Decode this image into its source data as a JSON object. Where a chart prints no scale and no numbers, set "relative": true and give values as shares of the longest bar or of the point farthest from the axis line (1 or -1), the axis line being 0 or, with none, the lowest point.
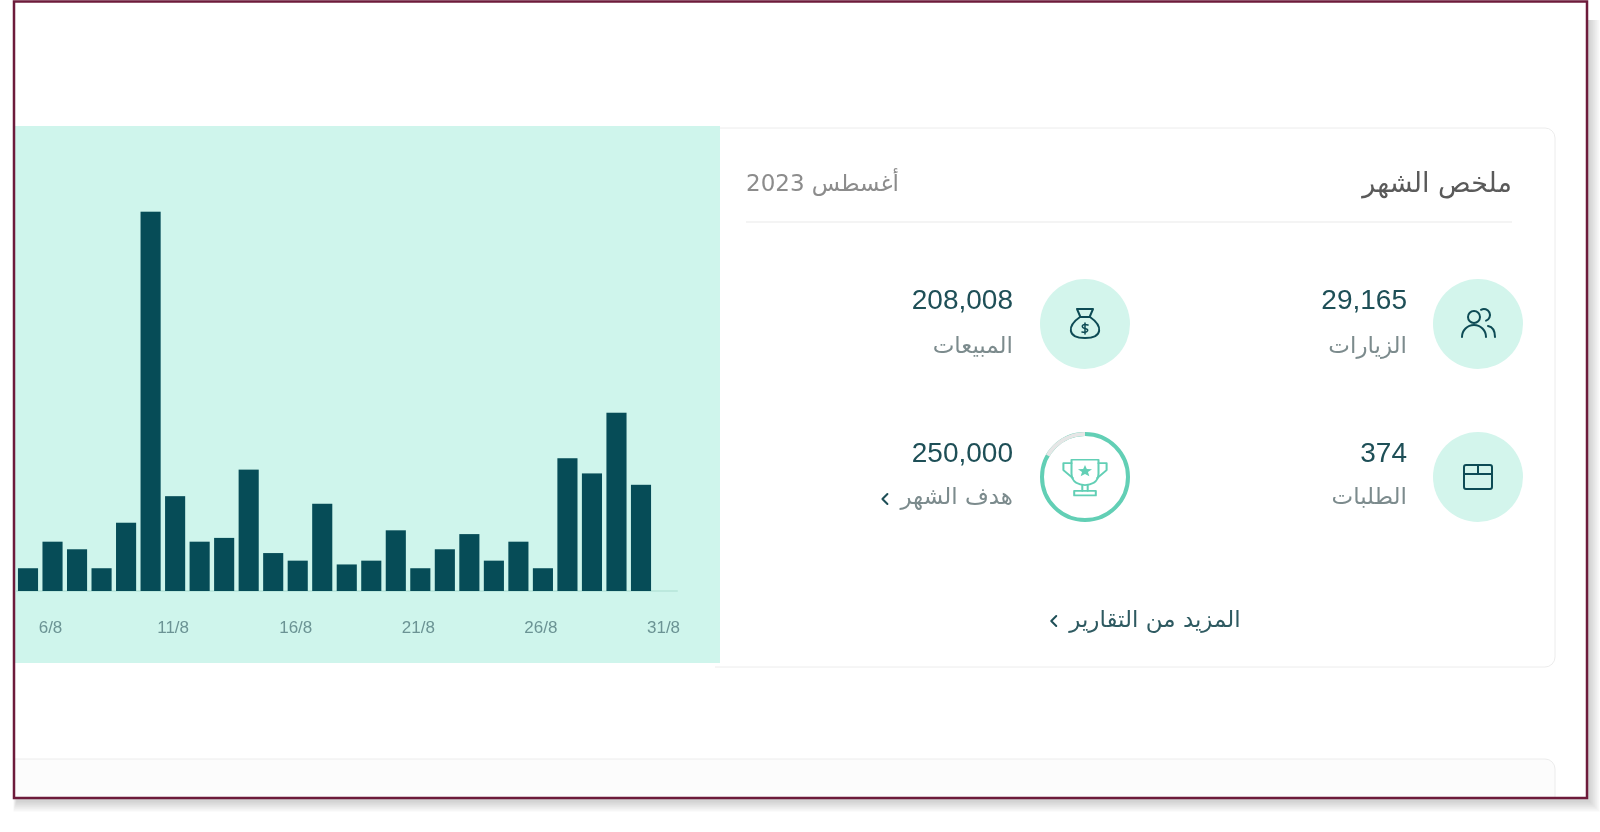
{
  "chart_data": [
    {
      "type": "bar",
      "categories": [
        null,
        "6/8",
        null,
        null,
        null,
        null,
        "11/8",
        null,
        null,
        null,
        null,
        "16/8",
        null,
        null,
        null,
        null,
        "21/8",
        null,
        null,
        null,
        null,
        "26/8",
        null,
        null,
        null,
        null,
        "31/8"
      ],
      "values": [
        0.06,
        0.13,
        0.11,
        0.06,
        0.18,
        1,
        0.25,
        0.13,
        0.14,
        0.32,
        0.1,
        0.08,
        0.23,
        0.07,
        0.08,
        0.16,
        0.06,
        0.11,
        0.15,
        0.08,
        0.13,
        0.06,
        0.35,
        0.31,
        0.47,
        0.28,
        null
      ],
      "color": "#064c57",
      "relative": true,
      "tick_labels": "x"
    },
    {
      "type": "other",
      "title": "ملخص الشهر",
      "subtitle": "أغسطس 2023",
      "annotations": [
        "29,165",
        "الزيارات",
        "208,008",
        "المبيعات",
        "374",
        "الطلبات",
        "250,000",
        "هدف الشهر",
        "المزيد من التقارير"
      ]
    }
  ]
}
